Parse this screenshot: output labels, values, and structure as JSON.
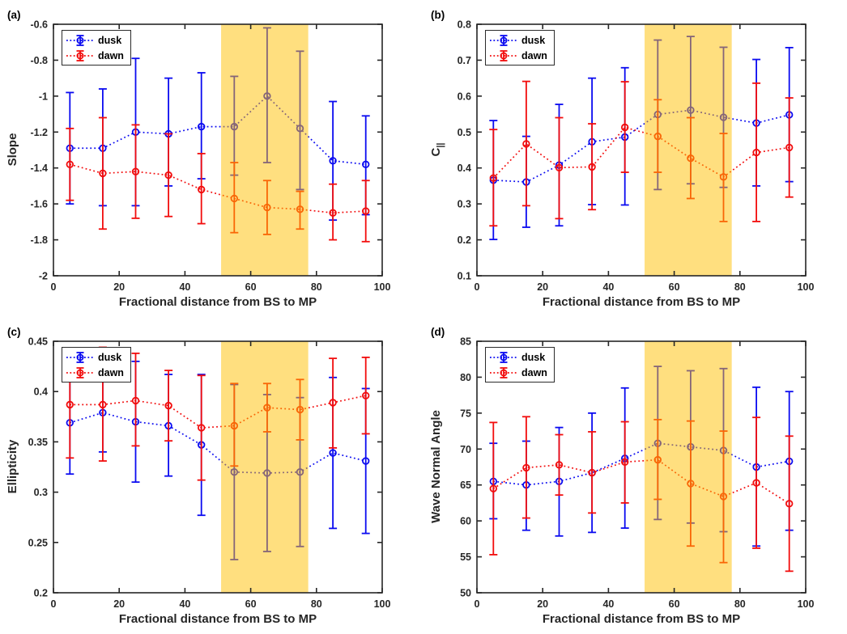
{
  "figure": {
    "colors": {
      "dusk": "#0b0bf0",
      "dawn": "#f20d0d",
      "band": "#ffc000",
      "band_opacity": 0.5,
      "axis": "#262626",
      "text": "#000000"
    },
    "legend": {
      "position": "top-left",
      "items": [
        {
          "key": "dusk",
          "label": "dusk"
        },
        {
          "key": "dawn",
          "label": "dawn"
        }
      ]
    }
  },
  "chart_data": [
    {
      "id": "a",
      "panel_label": "(a)",
      "type": "line",
      "has_error_bars": true,
      "grid": false,
      "xlabel": "Fractional distance from BS to MP",
      "ylabel": "Slope",
      "xlim": [
        0,
        100
      ],
      "ylim": [
        -2,
        -0.6
      ],
      "xticks": [
        0,
        20,
        40,
        60,
        80,
        100
      ],
      "xtick_labels": [
        "0",
        "20",
        "40",
        "60",
        "80",
        "100"
      ],
      "yticks": [
        -2,
        -1.8,
        -1.6,
        -1.4,
        -1.2,
        -1,
        -0.8,
        -0.6
      ],
      "ytick_labels": [
        "-2",
        "-1.8",
        "-1.6",
        "-1.4",
        "-1.2",
        "-1",
        "-0.8",
        "-0.6"
      ],
      "shaded_region": {
        "x0": 51,
        "x1": 77.5
      },
      "x": [
        5,
        15,
        25,
        35,
        45,
        55,
        65,
        75,
        85,
        95
      ],
      "series": [
        {
          "name": "dusk",
          "color_key": "dusk",
          "values": [
            -1.29,
            -1.29,
            -1.2,
            -1.21,
            -1.17,
            -1.17,
            -1.0,
            -1.18,
            -1.36,
            -1.38
          ],
          "err_lo": [
            -1.6,
            -1.61,
            -1.61,
            -1.5,
            -1.46,
            -1.44,
            -1.37,
            -1.52,
            -1.69,
            -1.66
          ],
          "err_hi": [
            -0.98,
            -0.96,
            -0.79,
            -0.9,
            -0.87,
            -0.89,
            -0.62,
            -0.75,
            -1.03,
            -1.11
          ]
        },
        {
          "name": "dawn",
          "color_key": "dawn",
          "values": [
            -1.38,
            -1.43,
            -1.42,
            -1.44,
            -1.52,
            -1.57,
            -1.62,
            -1.63,
            -1.65,
            -1.64
          ],
          "err_lo": [
            -1.58,
            -1.74,
            -1.68,
            -1.67,
            -1.71,
            -1.76,
            -1.77,
            -1.74,
            -1.8,
            -1.81
          ],
          "err_hi": [
            -1.18,
            -1.12,
            -1.16,
            -1.21,
            -1.32,
            -1.37,
            -1.47,
            -1.53,
            -1.49,
            -1.47
          ]
        }
      ]
    },
    {
      "id": "b",
      "panel_label": "(b)",
      "type": "line",
      "has_error_bars": true,
      "grid": false,
      "xlabel": "Fractional distance from BS to MP",
      "ylabel": "C",
      "ylabel_sub": "||",
      "xlim": [
        0,
        100
      ],
      "ylim": [
        0.1,
        0.8
      ],
      "xticks": [
        0,
        20,
        40,
        60,
        80,
        100
      ],
      "xtick_labels": [
        "0",
        "20",
        "40",
        "60",
        "80",
        "100"
      ],
      "yticks": [
        0.1,
        0.2,
        0.3,
        0.4,
        0.5,
        0.6,
        0.7,
        0.8
      ],
      "ytick_labels": [
        "0.1",
        "0.2",
        "0.3",
        "0.4",
        "0.5",
        "0.6",
        "0.7",
        "0.8"
      ],
      "shaded_region": {
        "x0": 51,
        "x1": 77.5
      },
      "x": [
        5,
        15,
        25,
        35,
        45,
        55,
        65,
        75,
        85,
        95
      ],
      "series": [
        {
          "name": "dusk",
          "color_key": "dusk",
          "values": [
            0.366,
            0.361,
            0.408,
            0.473,
            0.486,
            0.549,
            0.561,
            0.541,
            0.525,
            0.548
          ],
          "err_lo": [
            0.201,
            0.235,
            0.239,
            0.298,
            0.297,
            0.34,
            0.356,
            0.346,
            0.35,
            0.362
          ],
          "err_hi": [
            0.532,
            0.488,
            0.577,
            0.65,
            0.679,
            0.756,
            0.766,
            0.736,
            0.702,
            0.735
          ]
        },
        {
          "name": "dawn",
          "color_key": "dawn",
          "values": [
            0.372,
            0.467,
            0.401,
            0.403,
            0.513,
            0.488,
            0.427,
            0.375,
            0.443,
            0.457
          ],
          "err_lo": [
            0.239,
            0.295,
            0.259,
            0.284,
            0.388,
            0.388,
            0.315,
            0.251,
            0.251,
            0.319
          ],
          "err_hi": [
            0.507,
            0.641,
            0.54,
            0.523,
            0.64,
            0.59,
            0.54,
            0.496,
            0.636,
            0.595
          ]
        }
      ]
    },
    {
      "id": "c",
      "panel_label": "(c)",
      "type": "line",
      "has_error_bars": true,
      "grid": false,
      "xlabel": "Fractional distance from BS to MP",
      "ylabel": "Ellipticity",
      "xlim": [
        0,
        100
      ],
      "ylim": [
        0.2,
        0.45
      ],
      "xticks": [
        0,
        20,
        40,
        60,
        80,
        100
      ],
      "xtick_labels": [
        "0",
        "20",
        "40",
        "60",
        "80",
        "100"
      ],
      "yticks": [
        0.2,
        0.25,
        0.3,
        0.35,
        0.4,
        0.45
      ],
      "ytick_labels": [
        "0.2",
        "0.25",
        "0.3",
        "0.35",
        "0.4",
        "0.45"
      ],
      "shaded_region": {
        "x0": 51,
        "x1": 77.5
      },
      "x": [
        5,
        15,
        25,
        35,
        45,
        55,
        65,
        75,
        85,
        95
      ],
      "series": [
        {
          "name": "dusk",
          "color_key": "dusk",
          "values": [
            0.369,
            0.379,
            0.37,
            0.366,
            0.347,
            0.32,
            0.319,
            0.32,
            0.339,
            0.331
          ],
          "err_lo": [
            0.318,
            0.34,
            0.31,
            0.316,
            0.277,
            0.233,
            0.241,
            0.246,
            0.264,
            0.259
          ],
          "err_hi": [
            0.42,
            0.417,
            0.43,
            0.417,
            0.417,
            0.407,
            0.397,
            0.394,
            0.414,
            0.403
          ]
        },
        {
          "name": "dawn",
          "color_key": "dawn",
          "values": [
            0.387,
            0.387,
            0.391,
            0.386,
            0.364,
            0.366,
            0.384,
            0.382,
            0.389,
            0.396
          ],
          "err_lo": [
            0.334,
            0.331,
            0.346,
            0.351,
            0.312,
            0.326,
            0.36,
            0.352,
            0.344,
            0.358
          ],
          "err_hi": [
            0.44,
            0.444,
            0.438,
            0.421,
            0.416,
            0.408,
            0.408,
            0.412,
            0.433,
            0.434
          ]
        }
      ]
    },
    {
      "id": "d",
      "panel_label": "(d)",
      "type": "line",
      "has_error_bars": true,
      "grid": false,
      "xlabel": "Fractional distance from BS to MP",
      "ylabel": "Wave Normal Angle",
      "xlim": [
        0,
        100
      ],
      "ylim": [
        50,
        85
      ],
      "xticks": [
        0,
        20,
        40,
        60,
        80,
        100
      ],
      "xtick_labels": [
        "0",
        "20",
        "40",
        "60",
        "80",
        "100"
      ],
      "yticks": [
        50,
        55,
        60,
        65,
        70,
        75,
        80,
        85
      ],
      "ytick_labels": [
        "50",
        "55",
        "60",
        "65",
        "70",
        "75",
        "80",
        "85"
      ],
      "shaded_region": {
        "x0": 51,
        "x1": 77.5
      },
      "x": [
        5,
        15,
        25,
        35,
        45,
        55,
        65,
        75,
        85,
        95
      ],
      "series": [
        {
          "name": "dusk",
          "color_key": "dusk",
          "values": [
            65.5,
            65.0,
            65.5,
            66.7,
            68.7,
            70.8,
            70.3,
            69.8,
            67.5,
            68.3
          ],
          "err_lo": [
            60.3,
            58.7,
            57.9,
            58.4,
            59.0,
            60.2,
            59.7,
            58.5,
            56.5,
            58.7
          ],
          "err_hi": [
            70.8,
            71.1,
            73.0,
            75.0,
            78.5,
            81.5,
            80.9,
            81.2,
            78.6,
            78.0
          ]
        },
        {
          "name": "dawn",
          "color_key": "dawn",
          "values": [
            64.5,
            67.4,
            67.8,
            66.7,
            68.2,
            68.5,
            65.2,
            63.4,
            65.3,
            62.4
          ],
          "err_lo": [
            55.3,
            60.4,
            63.6,
            61.1,
            62.5,
            63.0,
            56.5,
            54.2,
            56.2,
            53.0
          ],
          "err_hi": [
            73.7,
            74.5,
            72.0,
            72.4,
            73.8,
            74.1,
            73.9,
            72.5,
            74.4,
            71.8
          ]
        }
      ]
    }
  ]
}
